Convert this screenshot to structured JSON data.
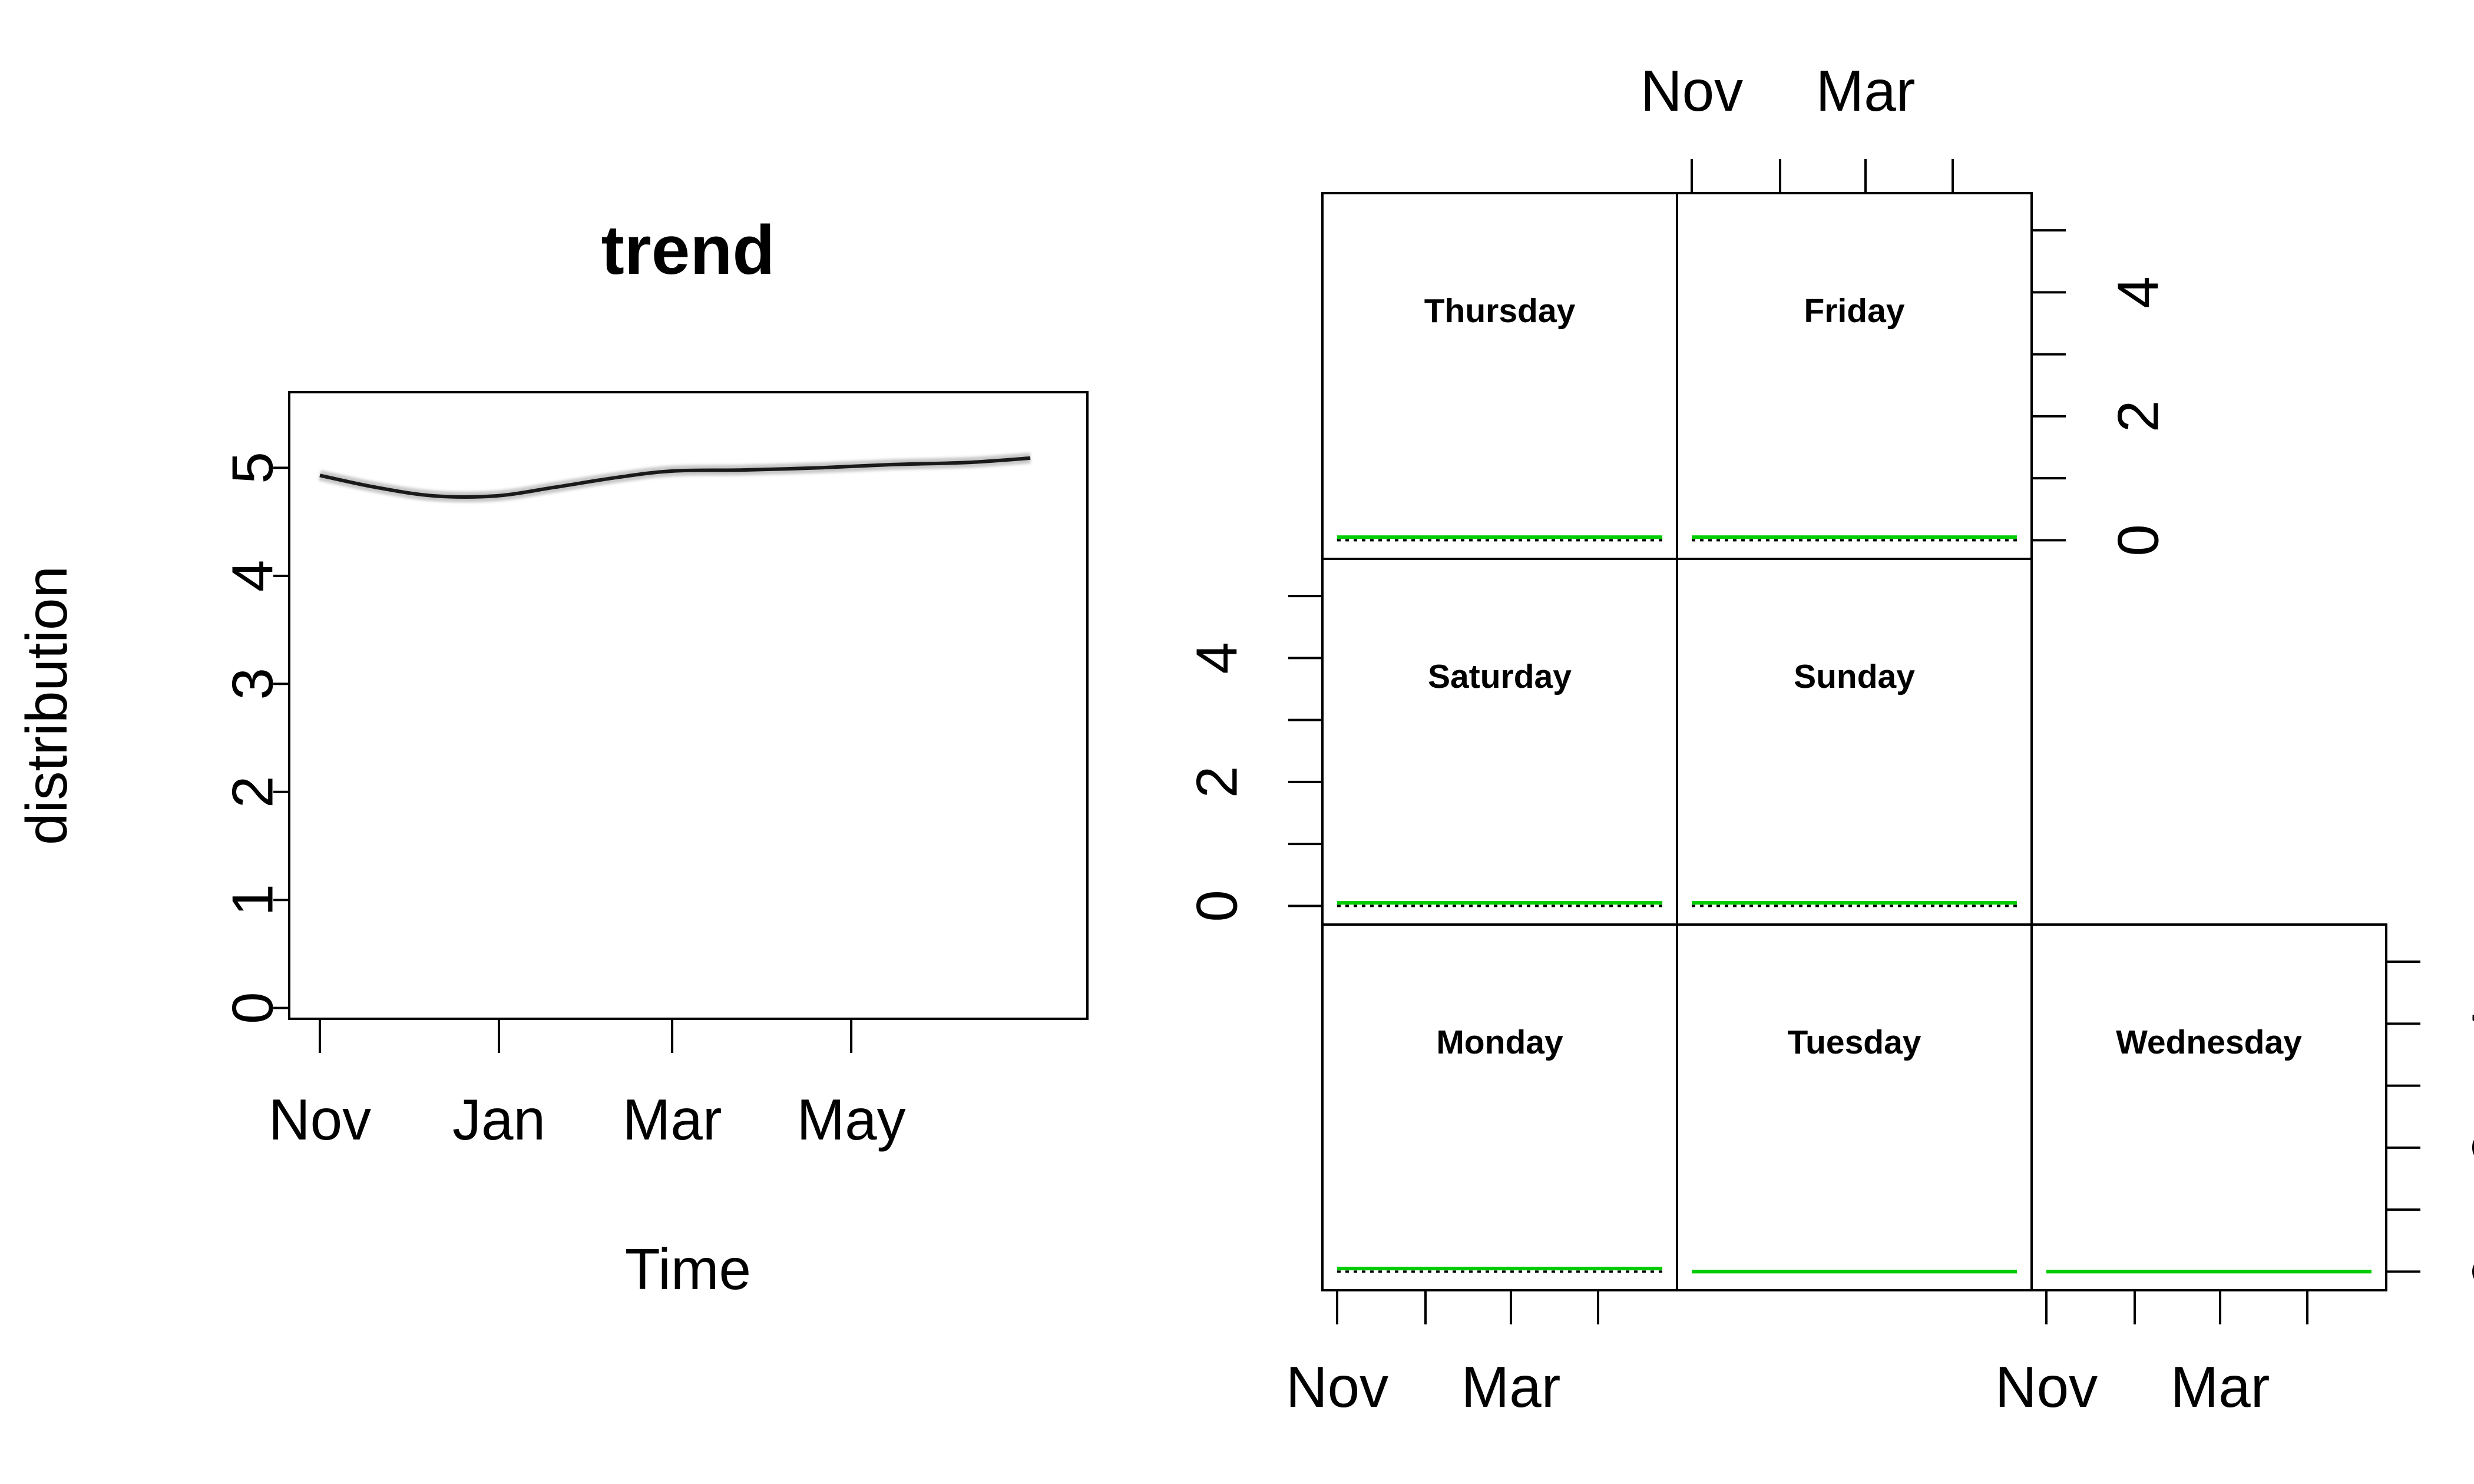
{
  "chart_data": [
    {
      "type": "line",
      "title": "trend",
      "xlabel": "Time",
      "ylabel": "distribution",
      "x_ticks": [
        "Nov",
        "Jan",
        "Mar",
        "May"
      ],
      "y_ticks": [
        "0",
        "1",
        "2",
        "3",
        "4",
        "5"
      ],
      "ylim": [
        -0.1,
        5.7
      ],
      "x_start": "2017-11-01",
      "x_end": "2018-07-10",
      "series": [
        {
          "x": [
            "2017-11-01",
            "2017-11-20",
            "2017-12-10",
            "2017-12-31",
            "2018-01-20",
            "2018-02-10",
            "2018-03-01",
            "2018-03-25",
            "2018-04-20",
            "2018-05-15",
            "2018-06-10",
            "2018-07-01"
          ],
          "values": [
            4.93,
            4.82,
            4.74,
            4.74,
            4.82,
            4.91,
            4.97,
            4.98,
            5.0,
            5.03,
            5.05,
            5.09
          ]
        }
      ]
    },
    {
      "type": "line",
      "facet_layout": "3x3",
      "x_ticks": [
        "Nov",
        "Mar"
      ],
      "y_ticks": [
        "0",
        "2",
        "4"
      ],
      "ylim": [
        -0.3,
        5.6
      ],
      "panels": [
        {
          "label": "Thursday",
          "level": 0.05,
          "color": "#00cc00"
        },
        {
          "label": "Friday",
          "level": 0.05,
          "color": "#00cc00"
        },
        {
          "label": "Saturday",
          "level": 0.05,
          "color": "#00cc00"
        },
        {
          "label": "Sunday",
          "level": 0.05,
          "color": "#00cc00"
        },
        {
          "label": "Monday",
          "level": 0.05,
          "color": "#00cc00"
        },
        {
          "label": "Tuesday",
          "level": 0.0,
          "color": "#00cc00"
        },
        {
          "label": "Wednesday",
          "level": 0.0,
          "color": "#00cc00"
        }
      ]
    }
  ]
}
